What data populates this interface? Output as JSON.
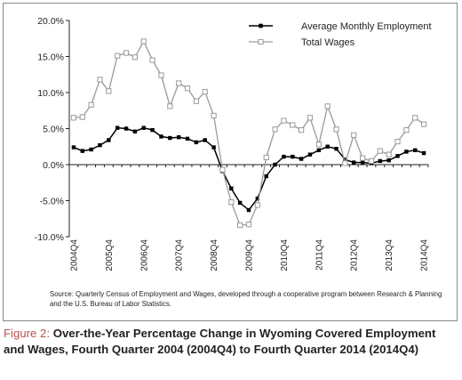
{
  "chart_data": {
    "type": "line",
    "title": "",
    "xlabel": "",
    "ylabel": "",
    "ylim": [
      -10,
      20
    ],
    "yticks": [
      -10,
      -5,
      0,
      5,
      10,
      15,
      20
    ],
    "ytick_labels": [
      "-10.0%",
      "-5.0%",
      "0.0%",
      "5.0%",
      "10.0%",
      "15.0%",
      "20.0%"
    ],
    "x": [
      "2004Q4",
      "2005Q1",
      "2005Q2",
      "2005Q3",
      "2005Q4",
      "2006Q1",
      "2006Q2",
      "2006Q3",
      "2006Q4",
      "2007Q1",
      "2007Q2",
      "2007Q3",
      "2007Q4",
      "2008Q1",
      "2008Q2",
      "2008Q3",
      "2008Q4",
      "2009Q1",
      "2009Q2",
      "2009Q3",
      "2009Q4",
      "2010Q1",
      "2010Q2",
      "2010Q3",
      "2010Q4",
      "2011Q1",
      "2011Q2",
      "2011Q3",
      "2011Q4",
      "2012Q1",
      "2012Q2",
      "2012Q3",
      "2012Q4",
      "2013Q1",
      "2013Q2",
      "2013Q3",
      "2013Q4",
      "2014Q1",
      "2014Q2",
      "2014Q3",
      "2014Q4"
    ],
    "xtick_labels": [
      "2004Q4",
      "2005Q4",
      "2006Q4",
      "2007Q4",
      "2008Q4",
      "2009Q4",
      "2010Q4",
      "2011Q4",
      "2012Q4",
      "2013Q4",
      "2014Q4"
    ],
    "series": [
      {
        "name": "Average Monthly Employment",
        "color": "#000000",
        "marker": "filled-square",
        "values": [
          2.4,
          1.9,
          2.1,
          2.7,
          3.4,
          5.1,
          5.0,
          4.6,
          5.1,
          4.8,
          3.9,
          3.7,
          3.8,
          3.6,
          3.1,
          3.4,
          2.4,
          -0.9,
          -3.3,
          -5.3,
          -6.3,
          -4.7,
          -1.6,
          0.0,
          1.1,
          1.1,
          0.8,
          1.4,
          2.0,
          2.5,
          2.2,
          0.7,
          0.3,
          0.3,
          0.2,
          0.5,
          0.6,
          1.2,
          1.8,
          2.0,
          1.6
        ]
      },
      {
        "name": "Total Wages",
        "color": "#9a9a9a",
        "marker": "hollow-square",
        "values": [
          6.5,
          6.6,
          8.3,
          11.8,
          10.2,
          15.1,
          15.5,
          14.9,
          17.1,
          14.5,
          12.4,
          8.1,
          11.3,
          10.6,
          8.8,
          10.1,
          6.8,
          -0.7,
          -5.2,
          -8.4,
          -8.3,
          -5.6,
          1.0,
          4.9,
          6.1,
          5.5,
          4.8,
          6.5,
          2.8,
          8.1,
          4.9,
          0.2,
          4.1,
          0.9,
          0.5,
          1.9,
          1.4,
          3.2,
          4.8,
          6.5,
          5.6
        ]
      }
    ],
    "legend_position": "top-right",
    "grid": false
  },
  "source_note": "Source: Quarterly Census of Employment and Wages, developed through a cooperative program between Research & Planning and the U.S. Bureau of Labor Statistics.",
  "caption": {
    "label": "Figure 2:",
    "text": "Over-the-Year Percentage Change in Wyoming Covered Employment and Wages, Fourth Quarter 2004 (2004Q4) to Fourth Quarter 2014 (2014Q4)"
  }
}
